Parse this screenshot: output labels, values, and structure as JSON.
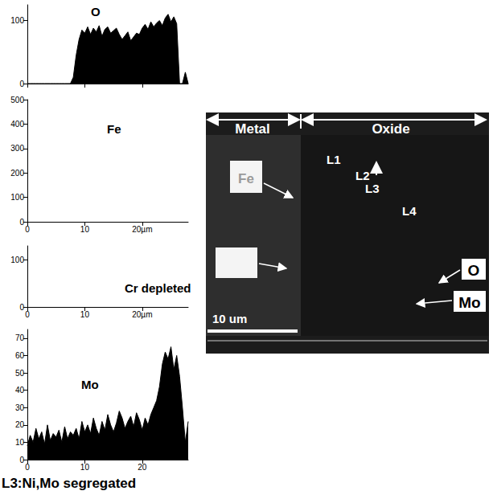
{
  "chart_data": [
    {
      "type": "area",
      "title": "O",
      "color": "#000000",
      "x": [
        0,
        0.5,
        1,
        1.5,
        2,
        2.5,
        3,
        3.5,
        4,
        4.5,
        5,
        5.5,
        6,
        6.5,
        7,
        7.5,
        8,
        8.5,
        9,
        9.5,
        10,
        10.5,
        11,
        11.5,
        12,
        12.5,
        13,
        13.5,
        14,
        14.5,
        15,
        15.5,
        16,
        16.5,
        17,
        17.5,
        18,
        18.5,
        19,
        19.5,
        20,
        20.5,
        21,
        21.5,
        22,
        22.5,
        23,
        23.5,
        24,
        24.5,
        25,
        25.5,
        26,
        26.5,
        27,
        27.5,
        28
      ],
      "values": [
        0,
        0,
        0,
        0,
        0,
        0,
        0,
        0,
        0,
        0,
        0,
        0,
        0,
        0,
        0,
        0,
        10,
        45,
        70,
        85,
        80,
        90,
        78,
        88,
        82,
        92,
        75,
        86,
        90,
        80,
        84,
        88,
        78,
        70,
        76,
        82,
        68,
        74,
        80,
        78,
        88,
        94,
        86,
        98,
        90,
        96,
        100,
        92,
        104,
        110,
        98,
        106,
        95,
        0,
        0,
        18,
        0
      ],
      "xlim": [
        0,
        28
      ],
      "xticks": [
        0,
        10,
        20
      ],
      "ylim": [
        0,
        125
      ],
      "yticks": [
        0,
        100
      ],
      "tick_labels": "y"
    },
    {
      "type": "area",
      "title": "Fe",
      "color": "#000000",
      "x": [],
      "values": [],
      "xlim": [
        0,
        28
      ],
      "xticks": [
        0,
        10,
        {
          "value": 20,
          "label": "20µm"
        }
      ],
      "ylim": [
        0,
        500
      ],
      "yticks": [
        0,
        100,
        200,
        300,
        400,
        500
      ]
    },
    {
      "type": "area",
      "title": "Cr depleted",
      "color": "#000000",
      "x": [],
      "values": [],
      "xlim": [
        0,
        28
      ],
      "xticks": [
        0,
        10,
        {
          "value": 20,
          "label": "20µm"
        }
      ],
      "ylim": [
        0,
        130
      ],
      "yticks": [
        0,
        100
      ]
    },
    {
      "type": "area",
      "title": "Mo",
      "color": "#000000",
      "x": [
        0,
        0.5,
        1,
        1.5,
        2,
        2.5,
        3,
        3.5,
        4,
        4.5,
        5,
        5.5,
        6,
        6.5,
        7,
        7.5,
        8,
        8.5,
        9,
        9.5,
        10,
        10.5,
        11,
        11.5,
        12,
        12.5,
        13,
        13.5,
        14,
        14.5,
        15,
        15.5,
        16,
        16.5,
        17,
        17.5,
        18,
        18.5,
        19,
        19.5,
        20,
        20.5,
        21,
        21.5,
        22,
        22.5,
        23,
        23.5,
        24,
        24.5,
        25,
        25.5,
        26,
        26.5,
        27,
        27.5,
        28
      ],
      "values": [
        8,
        14,
        10,
        18,
        12,
        16,
        9,
        20,
        11,
        15,
        13,
        17,
        10,
        19,
        12,
        16,
        14,
        18,
        12,
        22,
        16,
        20,
        15,
        24,
        18,
        14,
        22,
        17,
        26,
        20,
        16,
        21,
        28,
        24,
        18,
        22,
        25,
        19,
        27,
        23,
        17,
        24,
        20,
        26,
        30,
        34,
        42,
        55,
        62,
        58,
        65,
        52,
        60,
        48,
        30,
        10,
        22
      ],
      "xlim": [
        0,
        28
      ],
      "xticks": [
        0,
        10,
        20
      ],
      "ylim": [
        0,
        75
      ],
      "yticks": [
        0,
        10,
        20,
        30,
        40,
        50,
        60,
        70
      ]
    }
  ],
  "image": {
    "regions": [
      "Metal",
      "Oxide"
    ],
    "lines": [
      "L1",
      "L2",
      "L3",
      "L4"
    ],
    "elements": [
      "Fe",
      "O",
      "Mo"
    ],
    "scale_bar": "10 um"
  },
  "caption": "L3:Ni,Mo segregated"
}
